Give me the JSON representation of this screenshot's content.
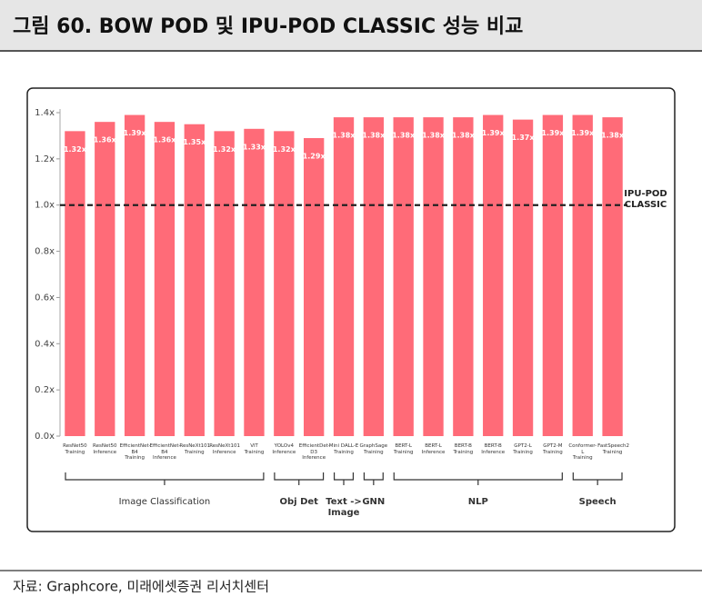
{
  "chart_data": {
    "type": "bar",
    "title": "그림 60. BOW POD 및 IPU-POD CLASSIC 성능 비교",
    "source": "자료: Graphcore, 미래에셋증권 리서치센터",
    "categories": [
      "ResNet50\nTraining",
      "ResNet50\nInference",
      "EfficientNet-B4\nTraining",
      "EfficientNet-B4\nInference",
      "ResNeXt101\nTraining",
      "ResNeXt101\nInference",
      "ViT\nTraining",
      "YOLOv4\nInference",
      "EfficientDet-D3\nInference",
      "Mini DALL-E\nTraining",
      "GraphSage\nTraining",
      "BERT-L\nTraining",
      "BERT-L\nInference",
      "BERT-B\nTraining",
      "BERT-B\nInference",
      "GPT2-L\nTraining",
      "GPT2-M\nTraining",
      "Conformer-L\nTraining",
      "FastSpeech2\nTraining"
    ],
    "values": [
      1.32,
      1.36,
      1.39,
      1.36,
      1.35,
      1.32,
      1.33,
      1.32,
      1.29,
      1.38,
      1.38,
      1.38,
      1.38,
      1.38,
      1.39,
      1.37,
      1.39,
      1.39,
      1.38
    ],
    "value_labels": [
      "1.32x",
      "1.36x",
      "1.39x",
      "1.36x",
      "1.35x",
      "1.32x",
      "1.33x",
      "1.32x",
      "1.29x",
      "1.38x",
      "1.38x",
      "1.38x",
      "1.38x",
      "1.38x",
      "1.39x",
      "1.37x",
      "1.39x",
      "1.39x",
      "1.38x"
    ],
    "color": "#ff6b78",
    "ylim": [
      0,
      1.4
    ],
    "yticks": [
      {
        "value": 0,
        "label": "0.0x"
      },
      {
        "value": 0.2,
        "label": "0.2x"
      },
      {
        "value": 0.4,
        "label": "0.4x"
      },
      {
        "value": 0.6,
        "label": "0.6x"
      },
      {
        "value": 0.8,
        "label": "0.8x"
      },
      {
        "value": 1,
        "label": "1.0x"
      },
      {
        "value": 1.2,
        "label": "1.2x"
      },
      {
        "value": 1.4,
        "label": "1.4x"
      }
    ],
    "reference_line": {
      "value": 1,
      "label": "IPU-POD\nCLASSIC"
    },
    "groups": [
      {
        "label": "Image Classification",
        "count": 7
      },
      {
        "label": "Obj Det",
        "count": 2
      },
      {
        "label": "Text ->\nImage",
        "count": 1
      },
      {
        "label": "GNN",
        "count": 1
      },
      {
        "label": "NLP",
        "count": 6
      },
      {
        "label": "Speech",
        "count": 2
      }
    ]
  }
}
